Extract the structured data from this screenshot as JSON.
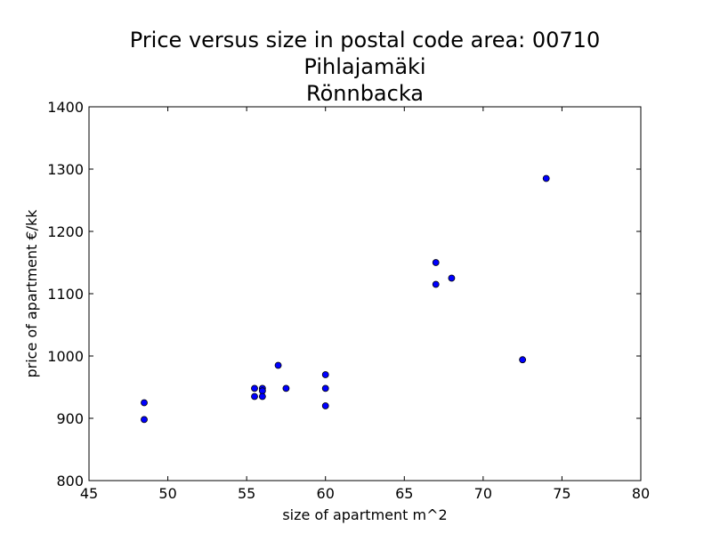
{
  "chart_data": {
    "type": "scatter",
    "title": [
      "Price versus size in postal code area: 00710",
      "Pihlajamäki",
      "Rönnbacka"
    ],
    "xlabel": "size of apartment m^2",
    "ylabel": "price of apartment €/kk",
    "xlim": [
      45,
      80
    ],
    "ylim": [
      800,
      1400
    ],
    "xticks": [
      45,
      50,
      55,
      60,
      65,
      70,
      75,
      80
    ],
    "yticks": [
      800,
      900,
      1000,
      1100,
      1200,
      1300,
      1400
    ],
    "grid": false,
    "marker_color": "#0000ff",
    "marker_edge": "#000000",
    "points": [
      {
        "x": 48.5,
        "y": 925
      },
      {
        "x": 48.5,
        "y": 898
      },
      {
        "x": 55.5,
        "y": 948
      },
      {
        "x": 55.5,
        "y": 935
      },
      {
        "x": 56,
        "y": 948
      },
      {
        "x": 56,
        "y": 944
      },
      {
        "x": 56,
        "y": 935
      },
      {
        "x": 57,
        "y": 985
      },
      {
        "x": 57.5,
        "y": 948
      },
      {
        "x": 60,
        "y": 970
      },
      {
        "x": 60,
        "y": 948
      },
      {
        "x": 60,
        "y": 920
      },
      {
        "x": 67,
        "y": 1150
      },
      {
        "x": 67,
        "y": 1115
      },
      {
        "x": 68,
        "y": 1125
      },
      {
        "x": 72.5,
        "y": 994
      },
      {
        "x": 74,
        "y": 1285
      }
    ]
  }
}
